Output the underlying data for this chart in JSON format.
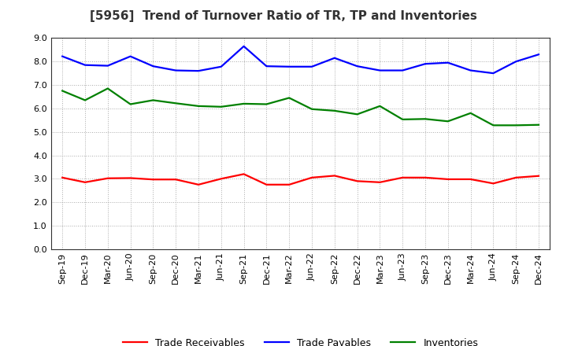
{
  "title": "[5956]  Trend of Turnover Ratio of TR, TP and Inventories",
  "x_labels": [
    "Sep-19",
    "Dec-19",
    "Mar-20",
    "Jun-20",
    "Sep-20",
    "Dec-20",
    "Mar-21",
    "Jun-21",
    "Sep-21",
    "Dec-21",
    "Mar-22",
    "Jun-22",
    "Sep-22",
    "Dec-22",
    "Mar-23",
    "Jun-23",
    "Sep-23",
    "Dec-23",
    "Mar-24",
    "Jun-24",
    "Sep-24",
    "Dec-24"
  ],
  "trade_receivables": [
    3.05,
    2.85,
    3.02,
    3.03,
    2.97,
    2.97,
    2.75,
    3.0,
    3.2,
    2.75,
    2.75,
    3.05,
    3.13,
    2.9,
    2.85,
    3.05,
    3.05,
    2.98,
    2.98,
    2.8,
    3.05,
    3.12
  ],
  "trade_payables": [
    8.22,
    7.85,
    7.82,
    8.22,
    7.8,
    7.62,
    7.6,
    7.78,
    8.65,
    7.8,
    7.78,
    7.78,
    8.15,
    7.8,
    7.62,
    7.62,
    7.9,
    7.95,
    7.62,
    7.5,
    8.0,
    8.3
  ],
  "inventories": [
    6.75,
    6.35,
    6.85,
    6.18,
    6.35,
    6.22,
    6.1,
    6.07,
    6.2,
    6.18,
    6.45,
    5.97,
    5.9,
    5.75,
    6.1,
    5.53,
    5.55,
    5.45,
    5.8,
    5.28,
    5.28,
    5.3
  ],
  "tr_color": "#ff0000",
  "tp_color": "#0000ff",
  "inv_color": "#008000",
  "ylim": [
    0.0,
    9.0
  ],
  "yticks": [
    0.0,
    1.0,
    2.0,
    3.0,
    4.0,
    5.0,
    6.0,
    7.0,
    8.0,
    9.0
  ],
  "legend_tr": "Trade Receivables",
  "legend_tp": "Trade Payables",
  "legend_inv": "Inventories",
  "bg_color": "#ffffff",
  "plot_bg_color": "#ffffff",
  "grid_color": "#aaaaaa",
  "line_width": 1.6
}
